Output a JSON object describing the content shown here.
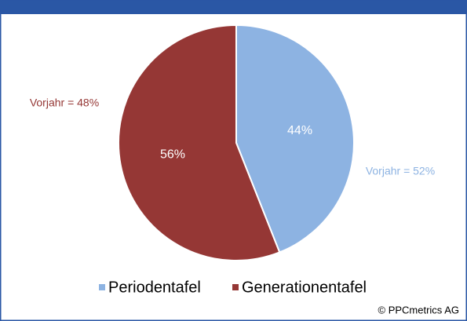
{
  "chart_data": {
    "type": "pie",
    "categories": [
      "Periodentafel",
      "Generationentafel"
    ],
    "values": [
      44,
      56
    ],
    "value_labels": [
      "44%",
      "56%"
    ],
    "colors": [
      "#8db3e2",
      "#953735"
    ],
    "annotations": [
      "Vorjahr = 52%",
      "Vorjahr = 48%"
    ],
    "legend": "bottom",
    "source": "© PPCmetrics AG"
  }
}
